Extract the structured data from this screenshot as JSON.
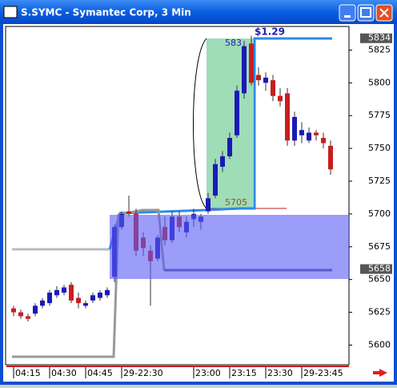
{
  "window": {
    "title": "S.SYMC - Symantec Corp, 3 Min"
  },
  "chart_data": {
    "type": "candlestick",
    "categories": [
      "04:15",
      null,
      null,
      null,
      null,
      "04:30",
      null,
      null,
      null,
      null,
      "04:45",
      null,
      null,
      null,
      null,
      "29-22:30",
      null,
      null,
      null,
      null,
      null,
      null,
      null,
      null,
      null,
      "23:00",
      null,
      null,
      null,
      null,
      "23:15",
      null,
      null,
      null,
      null,
      "23:30",
      null,
      null,
      null,
      null,
      "29-23:45",
      null,
      null,
      null,
      null
    ],
    "open": [
      5628,
      5625,
      5622,
      5624,
      5630,
      5632,
      5638,
      5640,
      5646,
      5636,
      5630,
      5634,
      5636,
      5638,
      5652,
      5690,
      5702,
      5700,
      5682,
      5672,
      5666,
      5690,
      5680,
      5698,
      5686,
      5696,
      5694,
      5702,
      5714,
      5736,
      5744,
      5760,
      5792,
      5830,
      5806,
      5800,
      5802,
      5790,
      5792,
      5756,
      5760,
      5756,
      5762,
      5758,
      5752
    ],
    "high": [
      5630,
      5627,
      5624,
      5632,
      5636,
      5642,
      5645,
      5646,
      5648,
      5640,
      5634,
      5640,
      5642,
      5644,
      5692,
      5702,
      5714,
      5704,
      5686,
      5676,
      5684,
      5698,
      5702,
      5702,
      5698,
      5704,
      5700,
      5716,
      5742,
      5748,
      5762,
      5798,
      5832,
      5836,
      5812,
      5808,
      5806,
      5796,
      5796,
      5778,
      5770,
      5766,
      5764,
      5762,
      5756
    ],
    "low": [
      5622,
      5620,
      5618,
      5622,
      5628,
      5630,
      5636,
      5638,
      5632,
      5628,
      5628,
      5632,
      5634,
      5636,
      5648,
      5688,
      5698,
      5668,
      5668,
      5630,
      5664,
      5676,
      5678,
      5686,
      5682,
      5690,
      5688,
      5700,
      5712,
      5732,
      5742,
      5758,
      5788,
      5798,
      5798,
      5794,
      5786,
      5782,
      5752,
      5752,
      5754,
      5754,
      5756,
      5750,
      5730
    ],
    "close": [
      5625,
      5622,
      5620,
      5630,
      5634,
      5640,
      5642,
      5644,
      5634,
      5632,
      5632,
      5638,
      5640,
      5642,
      5690,
      5700,
      5700,
      5672,
      5674,
      5664,
      5682,
      5680,
      5698,
      5690,
      5694,
      5700,
      5698,
      5712,
      5738,
      5744,
      5758,
      5794,
      5828,
      5800,
      5802,
      5804,
      5790,
      5786,
      5756,
      5774,
      5764,
      5762,
      5760,
      5754,
      5734
    ],
    "up_color": "#1a1ab8",
    "down_color": "#c81e1e",
    "ylim": [
      5585,
      5843
    ],
    "yticks": [
      5600,
      5625,
      5650,
      5675,
      5700,
      5725,
      5750,
      5775,
      5800,
      5825
    ],
    "price_markers": [
      5834,
      5658
    ],
    "annotations": {
      "range_high": "583",
      "range_low": "5705",
      "change": "$1.29"
    }
  }
}
